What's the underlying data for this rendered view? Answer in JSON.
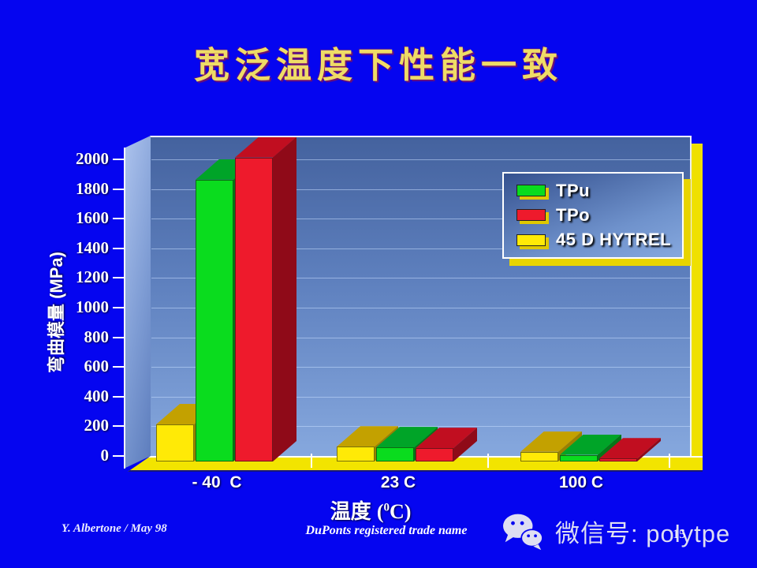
{
  "slide": {
    "title": "宽泛温度下性能一致",
    "background_color": "#0505F0",
    "title_color": "#EFDC66"
  },
  "chart_data": {
    "type": "bar",
    "style": "3d",
    "title": "",
    "categories": [
      "- 40  C",
      "23 C",
      "100 C"
    ],
    "series": [
      {
        "name": "TPu",
        "values": [
          1900,
          95,
          45
        ],
        "color": "#0ADC1E",
        "top_color": "#00A428",
        "side_color": "#067718"
      },
      {
        "name": "TPo",
        "values": [
          2050,
          90,
          20
        ],
        "color": "#EE1A2C",
        "top_color": "#C10E20",
        "side_color": "#8F0A18"
      },
      {
        "name": "45 D HYTREL",
        "values": [
          250,
          100,
          65
        ],
        "color": "#FFEA06",
        "top_color": "#C3A100",
        "side_color": "#9A7F00"
      }
    ],
    "bar_order_left_to_right": [
      "45 D HYTREL",
      "TPu",
      "TPo"
    ],
    "xlabel_cjk": "温度",
    "xlabel_unit_sup": "0",
    "ylabel": "弯曲模量 (MPa)",
    "ylim": [
      0,
      2000
    ],
    "ytick_step": 200,
    "ytick_labels": [
      "0",
      "200",
      "400",
      "600",
      "800",
      "1000",
      "1200",
      "1400",
      "1600",
      "1800",
      "2000"
    ],
    "legend_position": "upper right",
    "grid": true,
    "wall_color_hint": "blue gradient",
    "floor_color_hint": "#F2E400"
  },
  "footer": {
    "author": "Y. Albertone / May 98",
    "trademark": "DuPonts registered trade name",
    "page_number": "15"
  },
  "wechat": {
    "label": "微信号: polytpe",
    "icon": "wechat-icon"
  }
}
